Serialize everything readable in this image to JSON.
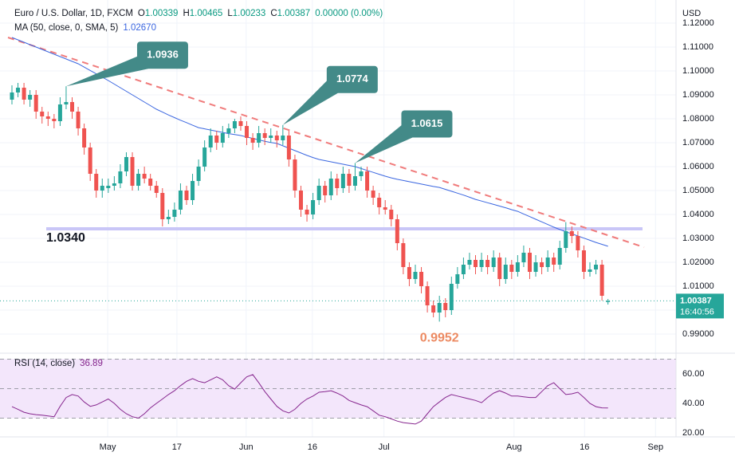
{
  "chart_data": {
    "type": "candlestick",
    "title": "Euro / U.S. Dollar, 1D, FXCM",
    "quote": [
      {
        "label": "O",
        "value": 1.00339
      },
      {
        "label": "H",
        "value": 1.00465
      },
      {
        "label": "L",
        "value": 1.00233
      },
      {
        "label": "C",
        "value": 1.00387
      }
    ],
    "change_label": "0.00000 (0.00%)",
    "unit": "USD",
    "up_color": "#26a69a",
    "down_color": "#ef5350",
    "ohlc": [
      [
        1.088,
        1.094,
        1.086,
        1.091
      ],
      [
        1.091,
        1.095,
        1.089,
        1.093
      ],
      [
        1.093,
        1.095,
        1.086,
        1.088
      ],
      [
        1.088,
        1.092,
        1.085,
        1.09
      ],
      [
        1.09,
        1.092,
        1.08,
        1.083
      ],
      [
        1.083,
        1.085,
        1.078,
        1.081
      ],
      [
        1.081,
        1.083,
        1.077,
        1.08
      ],
      [
        1.08,
        1.082,
        1.076,
        1.079
      ],
      [
        1.079,
        1.089,
        1.077,
        1.086
      ],
      [
        1.086,
        1.0936,
        1.084,
        1.087
      ],
      [
        1.087,
        1.089,
        1.08,
        1.083
      ],
      [
        1.083,
        1.085,
        1.073,
        1.076
      ],
      [
        1.076,
        1.078,
        1.065,
        1.068
      ],
      [
        1.068,
        1.07,
        1.054,
        1.057
      ],
      [
        1.057,
        1.059,
        1.047,
        1.05
      ],
      [
        1.05,
        1.055,
        1.047,
        1.052
      ],
      [
        1.051,
        1.055,
        1.049,
        1.052
      ],
      [
        1.052,
        1.056,
        1.05,
        1.053
      ],
      [
        1.053,
        1.061,
        1.051,
        1.058
      ],
      [
        1.058,
        1.066,
        1.056,
        1.064
      ],
      [
        1.064,
        1.066,
        1.05,
        1.052
      ],
      [
        1.052,
        1.059,
        1.05,
        1.057
      ],
      [
        1.057,
        1.06,
        1.053,
        1.055
      ],
      [
        1.055,
        1.057,
        1.05,
        1.052
      ],
      [
        1.052,
        1.054,
        1.047,
        1.049
      ],
      [
        1.049,
        1.051,
        1.035,
        1.038
      ],
      [
        1.038,
        1.042,
        1.036,
        1.039
      ],
      [
        1.039,
        1.045,
        1.037,
        1.042
      ],
      [
        1.042,
        1.053,
        1.04,
        1.05
      ],
      [
        1.05,
        1.052,
        1.044,
        1.046
      ],
      [
        1.046,
        1.057,
        1.044,
        1.054
      ],
      [
        1.054,
        1.063,
        1.052,
        1.06
      ],
      [
        1.06,
        1.071,
        1.058,
        1.068
      ],
      [
        1.068,
        1.076,
        1.066,
        1.073
      ],
      [
        1.073,
        1.075,
        1.067,
        1.07
      ],
      [
        1.07,
        1.077,
        1.068,
        1.074
      ],
      [
        1.074,
        1.078,
        1.072,
        1.076
      ],
      [
        1.076,
        1.08,
        1.074,
        1.079
      ],
      [
        1.079,
        1.081,
        1.075,
        1.077
      ],
      [
        1.077,
        1.079,
        1.069,
        1.072
      ],
      [
        1.072,
        1.074,
        1.067,
        1.07
      ],
      [
        1.07,
        1.077,
        1.068,
        1.074
      ],
      [
        1.074,
        1.076,
        1.069,
        1.072
      ],
      [
        1.072,
        1.076,
        1.07,
        1.073
      ],
      [
        1.073,
        1.075,
        1.068,
        1.071
      ],
      [
        1.071,
        1.0774,
        1.069,
        1.073
      ],
      [
        1.073,
        1.075,
        1.06,
        1.063
      ],
      [
        1.063,
        1.065,
        1.047,
        1.05
      ],
      [
        1.05,
        1.052,
        1.039,
        1.042
      ],
      [
        1.042,
        1.044,
        1.037,
        1.04
      ],
      [
        1.04,
        1.049,
        1.038,
        1.046
      ],
      [
        1.046,
        1.055,
        1.044,
        1.052
      ],
      [
        1.052,
        1.054,
        1.045,
        1.048
      ],
      [
        1.048,
        1.058,
        1.046,
        1.055
      ],
      [
        1.055,
        1.057,
        1.048,
        1.051
      ],
      [
        1.051,
        1.06,
        1.049,
        1.057
      ],
      [
        1.057,
        1.059,
        1.049,
        1.052
      ],
      [
        1.052,
        1.0615,
        1.05,
        1.056
      ],
      [
        1.056,
        1.06,
        1.054,
        1.058
      ],
      [
        1.058,
        1.06,
        1.047,
        1.05
      ],
      [
        1.05,
        1.052,
        1.044,
        1.047
      ],
      [
        1.047,
        1.049,
        1.04,
        1.043
      ],
      [
        1.043,
        1.046,
        1.04,
        1.042
      ],
      [
        1.042,
        1.044,
        1.035,
        1.038
      ],
      [
        1.038,
        1.04,
        1.025,
        1.028
      ],
      [
        1.028,
        1.03,
        1.015,
        1.018
      ],
      [
        1.018,
        1.02,
        1.01,
        1.013
      ],
      [
        1.013,
        1.019,
        1.011,
        1.016
      ],
      [
        1.016,
        1.018,
        1.007,
        1.01
      ],
      [
        1.01,
        1.012,
        0.999,
        1.002
      ],
      [
        1.002,
        1.004,
        0.997,
        0.999
      ],
      [
        0.999,
        1.006,
        0.9952,
        1.003
      ],
      [
        1.003,
        1.005,
        0.997,
        1.0
      ],
      [
        1.0,
        1.014,
        0.998,
        1.011
      ],
      [
        1.011,
        1.018,
        1.009,
        1.015
      ],
      [
        1.015,
        1.022,
        1.013,
        1.019
      ],
      [
        1.019,
        1.024,
        1.017,
        1.021
      ],
      [
        1.021,
        1.023,
        1.015,
        1.018
      ],
      [
        1.018,
        1.024,
        1.016,
        1.021
      ],
      [
        1.021,
        1.023,
        1.015,
        1.018
      ],
      [
        1.018,
        1.025,
        1.016,
        1.022
      ],
      [
        1.022,
        1.024,
        1.01,
        1.013
      ],
      [
        1.013,
        1.022,
        1.011,
        1.019
      ],
      [
        1.019,
        1.021,
        1.013,
        1.016
      ],
      [
        1.016,
        1.023,
        1.014,
        1.02
      ],
      [
        1.02,
        1.027,
        1.018,
        1.024
      ],
      [
        1.024,
        1.026,
        1.013,
        1.016
      ],
      [
        1.016,
        1.023,
        1.014,
        1.02
      ],
      [
        1.02,
        1.022,
        1.015,
        1.018
      ],
      [
        1.018,
        1.025,
        1.016,
        1.022
      ],
      [
        1.022,
        1.024,
        1.016,
        1.019
      ],
      [
        1.019,
        1.029,
        1.017,
        1.026
      ],
      [
        1.026,
        1.0368,
        1.024,
        1.033
      ],
      [
        1.033,
        1.035,
        1.028,
        1.031
      ],
      [
        1.031,
        1.033,
        1.022,
        1.025
      ],
      [
        1.025,
        1.027,
        1.013,
        1.016
      ],
      [
        1.016,
        1.02,
        1.014,
        1.017
      ],
      [
        1.017,
        1.021,
        1.015,
        1.019
      ],
      [
        1.019,
        1.021,
        1.004,
        1.006
      ],
      [
        1.00339,
        1.00465,
        1.00233,
        1.00387
      ]
    ],
    "ylim": [
      0.983,
      1.128
    ],
    "yticks": [
      {
        "value": 1.12,
        "label": "1.12000"
      },
      {
        "value": 1.11,
        "label": "1.11000"
      },
      {
        "value": 1.1,
        "label": "1.10000"
      },
      {
        "value": 1.09,
        "label": "1.09000"
      },
      {
        "value": 1.08,
        "label": "1.08000"
      },
      {
        "value": 1.07,
        "label": "1.07000"
      },
      {
        "value": 1.06,
        "label": "1.06000"
      },
      {
        "value": 1.05,
        "label": "1.05000"
      },
      {
        "value": 1.04,
        "label": "1.04000"
      },
      {
        "value": 1.03,
        "label": "1.03000"
      },
      {
        "value": 1.02,
        "label": "1.02000"
      },
      {
        "value": 1.01,
        "label": "1.01000"
      },
      {
        "value": 1.0,
        "label": "1.00000"
      },
      {
        "value": 0.99,
        "label": "0.99000"
      }
    ],
    "xlim": [
      -0.66,
      110.3
    ],
    "xticks": [
      {
        "value": 15.9,
        "label": "May"
      },
      {
        "value": 27.4,
        "label": "17"
      },
      {
        "value": 38.9,
        "label": "Jun"
      },
      {
        "value": 49.9,
        "label": "16"
      },
      {
        "value": 61.8,
        "label": "Jul"
      },
      {
        "value": 83.4,
        "label": "Aug"
      },
      {
        "value": 95.1,
        "label": "16"
      },
      {
        "value": 106.9,
        "label": "Sep"
      }
    ],
    "grid": true,
    "ma": {
      "name": "MA (50, close, 0, SMA, 5)",
      "value_label": "1.02670",
      "color": "#3a66e0",
      "values": [
        1.114,
        1.113,
        1.112,
        1.111,
        1.11,
        1.109,
        1.108,
        1.107,
        1.106,
        1.105,
        1.104,
        1.103,
        1.1016,
        1.1002,
        1.0988,
        1.0974,
        1.096,
        1.0945,
        1.093,
        1.0915,
        1.09,
        1.0885,
        1.087,
        1.0855,
        1.084,
        1.0828,
        1.0816,
        1.0805,
        1.0794,
        1.0784,
        1.0773,
        1.0763,
        1.0758,
        1.0753,
        1.0748,
        1.0743,
        1.0738,
        1.0734,
        1.073,
        1.0724,
        1.0718,
        1.0712,
        1.0706,
        1.0701,
        1.0697,
        1.0687,
        1.0677,
        1.0667,
        1.0657,
        1.0647,
        1.0638,
        1.063,
        1.0625,
        1.062,
        1.0615,
        1.061,
        1.0605,
        1.06,
        1.0592,
        1.0584,
        1.0576,
        1.0568,
        1.056,
        1.0553,
        1.0547,
        1.0542,
        1.0537,
        1.0532,
        1.0527,
        1.0522,
        1.0517,
        1.0513,
        1.0505,
        1.0497,
        1.0489,
        1.0481,
        1.0472,
        1.0463,
        1.0456,
        1.0449,
        1.0442,
        1.0435,
        1.0428,
        1.042,
        1.0413,
        1.0402,
        1.0391,
        1.038,
        1.0369,
        1.0358,
        1.0347,
        1.0337,
        1.0328,
        1.0319,
        1.031,
        1.0301,
        1.0292,
        1.0283,
        1.0275,
        1.0267
      ]
    },
    "trend_line": {
      "color": "#f07b7b",
      "values": [
        1.114,
        1.0263
      ]
    },
    "support": {
      "value": 1.034,
      "label": "1.0340",
      "color": "#c9c6f7",
      "label_color": "#6b6bd6"
    },
    "callouts": [
      {
        "value": 1.0936
      },
      {
        "value": 1.0774
      },
      {
        "value": 1.0615
      }
    ],
    "callout_color": "#438a88",
    "lows": [
      {
        "value": 0.9952
      }
    ],
    "low_color": "#ec8a62",
    "last_time": "16:40:56",
    "rsi": {
      "name": "RSI (14, close)",
      "color": "#86268e",
      "band_color": "#f3e6fb",
      "ylim": [
        17.3,
        71.9
      ],
      "yticks": [
        {
          "value": 60,
          "label": "60.00"
        },
        {
          "value": 40,
          "label": "40.00"
        },
        {
          "value": 20,
          "label": "20.00"
        }
      ],
      "levels": [
        70,
        50,
        30
      ],
      "values": [
        37.8,
        36,
        34,
        33,
        32.4,
        32,
        31.5,
        31,
        38,
        44,
        46,
        45,
        41,
        38,
        39,
        41,
        43,
        40,
        36,
        33,
        31,
        30,
        33,
        37,
        40,
        43,
        46,
        48.6,
        52,
        55,
        56.8,
        55,
        54,
        56,
        58,
        56,
        52,
        49.7,
        54,
        58,
        59.5,
        54,
        48,
        43,
        38,
        35,
        33.5,
        36,
        40,
        43,
        45,
        47.6,
        48,
        48.6,
        47,
        45,
        42,
        40.5,
        39,
        37.8,
        35,
        32,
        31,
        29.5,
        28,
        27,
        26.5,
        26,
        28,
        33,
        37.8,
        41,
        44,
        46,
        45,
        44,
        43,
        42,
        40.5,
        44,
        47,
        48.6,
        47,
        45,
        45,
        44.5,
        44,
        44,
        48,
        52,
        54,
        50,
        46,
        46.5,
        47.6,
        44,
        40,
        37.8,
        37,
        36.89
      ]
    }
  }
}
